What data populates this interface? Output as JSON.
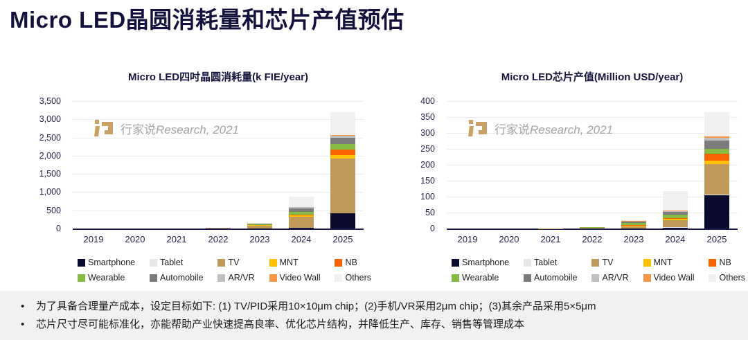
{
  "page": {
    "title": "Micro LED晶圆消耗量和芯片产值预估"
  },
  "watermark": {
    "cn": "行家说",
    "en": "Research, 2021",
    "logo": "hangjiashuo-logo",
    "logo_color": "#C9A164",
    "text_color": "#A3A3A3"
  },
  "charts": [
    {
      "title": "Micro LED四吋晶圆消耗量(k FIE/year)"
    },
    {
      "title": "Micro LED芯片产值(Million USD/year)"
    }
  ],
  "chart_data": [
    {
      "type": "bar",
      "stacked": true,
      "title": "Micro LED四吋晶圆消耗量(k FIE/year)",
      "unit": "k FIE/year",
      "categories": [
        "2019",
        "2020",
        "2021",
        "2022",
        "2023",
        "2024",
        "2025"
      ],
      "ylim": [
        0,
        3500
      ],
      "grid": true,
      "legend_position": "bottom",
      "yticks": {
        "values": [
          0,
          500,
          1000,
          1500,
          2000,
          2500,
          3000,
          3500
        ],
        "labels": [
          "0",
          "500",
          "1,000",
          "1,500",
          "2,000",
          "2,500",
          "3,000",
          "3,500"
        ]
      },
      "series": [
        {
          "name": "Smartphone",
          "color": "#0A0A2E",
          "values": [
            0,
            0,
            0,
            0,
            2,
            10,
            420
          ]
        },
        {
          "name": "Tablet",
          "color": "#E8E7E7",
          "values": [
            0,
            0,
            0,
            0,
            0,
            2,
            5
          ]
        },
        {
          "name": "TV",
          "color": "#C09A5A",
          "values": [
            0,
            0,
            1,
            10,
            70,
            320,
            1500
          ]
        },
        {
          "name": "MNT",
          "color": "#FFC000",
          "values": [
            0,
            0,
            0,
            1,
            15,
            25,
            100
          ]
        },
        {
          "name": "NB",
          "color": "#FA6400",
          "values": [
            0,
            0,
            0,
            3,
            10,
            20,
            140
          ]
        },
        {
          "name": "Wearable",
          "color": "#86BC42",
          "values": [
            0,
            0,
            0,
            2,
            20,
            75,
            160
          ]
        },
        {
          "name": "Automobile",
          "color": "#7C7C7C",
          "values": [
            0,
            0,
            0,
            1,
            15,
            110,
            170
          ]
        },
        {
          "name": "AR/VR",
          "color": "#BFBFBF",
          "values": [
            0,
            0,
            0,
            0,
            5,
            25,
            50
          ]
        },
        {
          "name": "Video Wall",
          "color": "#F99746",
          "values": [
            0,
            0,
            0,
            1,
            5,
            10,
            15
          ]
        },
        {
          "name": "Others",
          "color": "#F1F0EF",
          "values": [
            0,
            0,
            1,
            2,
            10,
            270,
            640
          ]
        }
      ]
    },
    {
      "type": "bar",
      "stacked": true,
      "title": "Micro LED芯片产值(Million USD/year)",
      "unit": "Million USD/year",
      "categories": [
        "2019",
        "2020",
        "2021",
        "2022",
        "2023",
        "2024",
        "2025"
      ],
      "ylim": [
        0,
        400
      ],
      "grid": true,
      "legend_position": "bottom",
      "yticks": {
        "values": [
          0,
          50,
          100,
          150,
          200,
          250,
          300,
          350,
          400
        ],
        "labels": [
          "0",
          "50",
          "100",
          "150",
          "200",
          "250",
          "300",
          "350",
          "400"
        ]
      },
      "series": [
        {
          "name": "Smartphone",
          "color": "#0A0A2E",
          "values": [
            0,
            0,
            0,
            0,
            1,
            3,
            105
          ]
        },
        {
          "name": "Tablet",
          "color": "#E8E7E7",
          "values": [
            0,
            0,
            0,
            0,
            0,
            1,
            2
          ]
        },
        {
          "name": "TV",
          "color": "#C09A5A",
          "values": [
            0,
            0,
            0.5,
            2,
            5,
            22,
            95
          ]
        },
        {
          "name": "MNT",
          "color": "#FFC000",
          "values": [
            0,
            0,
            0,
            0.5,
            3,
            4,
            12
          ]
        },
        {
          "name": "NB",
          "color": "#FA6400",
          "values": [
            0,
            0,
            0,
            0.5,
            2,
            3,
            20
          ]
        },
        {
          "name": "Wearable",
          "color": "#86BC42",
          "values": [
            0,
            0,
            0,
            0.5,
            6,
            10,
            17
          ]
        },
        {
          "name": "Automobile",
          "color": "#7C7C7C",
          "values": [
            0,
            0,
            0,
            0.5,
            4,
            9,
            26
          ]
        },
        {
          "name": "AR/VR",
          "color": "#BFBFBF",
          "values": [
            0,
            0,
            0,
            0,
            1,
            3,
            9
          ]
        },
        {
          "name": "Video Wall",
          "color": "#F99746",
          "values": [
            0,
            0,
            0,
            0.5,
            1,
            2,
            4
          ]
        },
        {
          "name": "Others",
          "color": "#F1F0EF",
          "values": [
            0,
            0,
            0.5,
            1,
            3,
            60,
            75
          ]
        }
      ]
    }
  ],
  "footer": {
    "marker": "•",
    "bullets": [
      "为了具备合理量产成本，设定目标如下: (1) TV/PID采用10×10μm chip；(2)手机/VR采用2μm chip；(3)其余产品采用5×5μm",
      "芯片尺寸尽可能标准化，亦能帮助产业快速提高良率、优化芯片结构，并降低生产、库存、销售等管理成本"
    ]
  }
}
